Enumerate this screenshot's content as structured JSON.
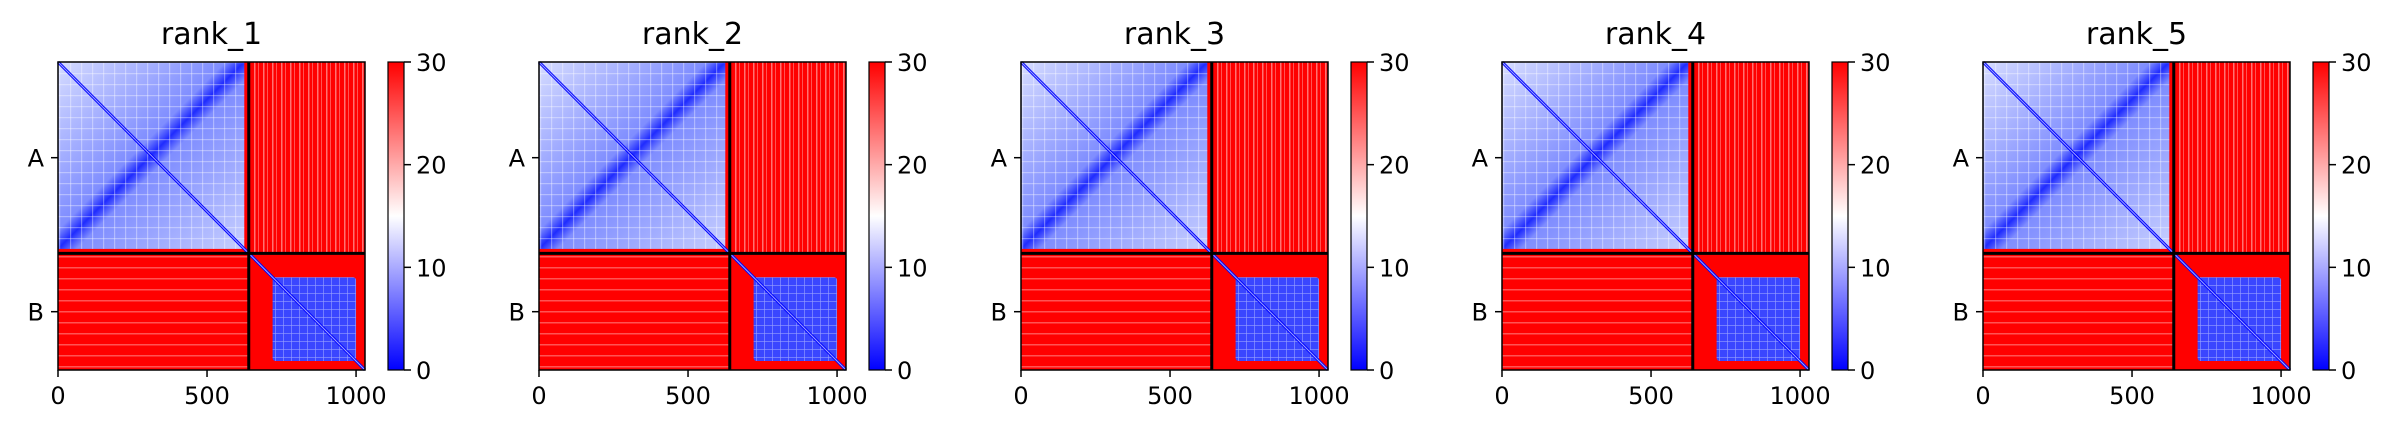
{
  "chart_data": [
    {
      "type": "heatmap",
      "title": "rank_1",
      "chains": [
        "A",
        "B"
      ],
      "chain_boundary": 640,
      "x": {
        "range": [
          0,
          1030
        ],
        "ticks": [
          0,
          500,
          1000
        ],
        "tick_labels": [
          "0",
          "500",
          "1000"
        ]
      },
      "colorbar": {
        "colormap": "bwr",
        "range": [
          0,
          30
        ],
        "ticks": [
          0,
          10,
          20,
          30
        ],
        "tick_labels": [
          "0",
          "10",
          "20",
          "30"
        ]
      },
      "blocks": {
        "A_A": "low",
        "A_B": "high",
        "B_A": "high",
        "B_B": "low-in-domain"
      }
    },
    {
      "type": "heatmap",
      "title": "rank_2",
      "chains": [
        "A",
        "B"
      ],
      "chain_boundary": 640,
      "x": {
        "range": [
          0,
          1030
        ],
        "ticks": [
          0,
          500,
          1000
        ],
        "tick_labels": [
          "0",
          "500",
          "1000"
        ]
      },
      "colorbar": {
        "colormap": "bwr",
        "range": [
          0,
          30
        ],
        "ticks": [
          0,
          10,
          20,
          30
        ],
        "tick_labels": [
          "0",
          "10",
          "20",
          "30"
        ]
      },
      "blocks": {
        "A_A": "low",
        "A_B": "high",
        "B_A": "high",
        "B_B": "low-in-domain"
      }
    },
    {
      "type": "heatmap",
      "title": "rank_3",
      "chains": [
        "A",
        "B"
      ],
      "chain_boundary": 640,
      "x": {
        "range": [
          0,
          1030
        ],
        "ticks": [
          0,
          500,
          1000
        ],
        "tick_labels": [
          "0",
          "500",
          "1000"
        ]
      },
      "colorbar": {
        "colormap": "bwr",
        "range": [
          0,
          30
        ],
        "ticks": [
          0,
          10,
          20,
          30
        ],
        "tick_labels": [
          "0",
          "10",
          "20",
          "30"
        ]
      },
      "blocks": {
        "A_A": "low",
        "A_B": "high",
        "B_A": "high",
        "B_B": "low-in-domain"
      }
    },
    {
      "type": "heatmap",
      "title": "rank_4",
      "chains": [
        "A",
        "B"
      ],
      "chain_boundary": 640,
      "x": {
        "range": [
          0,
          1030
        ],
        "ticks": [
          0,
          500,
          1000
        ],
        "tick_labels": [
          "0",
          "500",
          "1000"
        ]
      },
      "colorbar": {
        "colormap": "bwr",
        "range": [
          0,
          30
        ],
        "ticks": [
          0,
          10,
          20,
          30
        ],
        "tick_labels": [
          "0",
          "10",
          "20",
          "30"
        ]
      },
      "blocks": {
        "A_A": "low",
        "A_B": "high",
        "B_A": "high",
        "B_B": "low-in-domain"
      }
    },
    {
      "type": "heatmap",
      "title": "rank_5",
      "chains": [
        "A",
        "B"
      ],
      "chain_boundary": 640,
      "x": {
        "range": [
          0,
          1030
        ],
        "ticks": [
          0,
          500,
          1000
        ],
        "tick_labels": [
          "0",
          "500",
          "1000"
        ]
      },
      "colorbar": {
        "colormap": "bwr",
        "range": [
          0,
          30
        ],
        "ticks": [
          0,
          10,
          20,
          30
        ],
        "tick_labels": [
          "0",
          "10",
          "20",
          "30"
        ]
      },
      "blocks": {
        "A_A": "low",
        "A_B": "high",
        "B_A": "high",
        "B_B": "low-in-domain"
      }
    }
  ],
  "colors": {
    "low": "#0000ff",
    "mid": "#ffffff",
    "high": "#ff0000",
    "divider": "#000000"
  }
}
